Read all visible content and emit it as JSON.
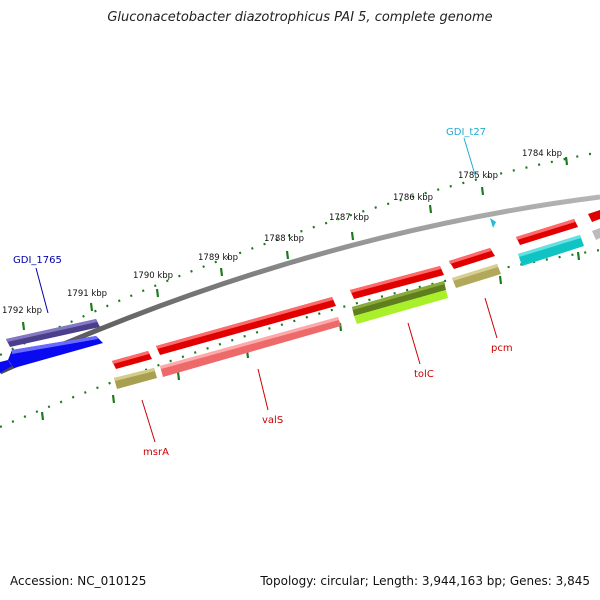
{
  "header": {
    "title": "Gluconacetobacter diazotrophicus PAI 5, complete genome"
  },
  "footer": {
    "accession": "Accession: NC_010125",
    "summary": "Topology: circular; Length: 3,944,163 bp; Genes: 3,845"
  },
  "colors": {
    "backbone": "#7f7f7f",
    "tick": "#1e7a1e",
    "label_red": "#cc0000",
    "label_navy": "#0000aa",
    "label_cyan": "#22aacc"
  },
  "scale": {
    "ticks": [
      {
        "label": "1784 kbp"
      },
      {
        "label": "1785 kbp"
      },
      {
        "label": "1786 kbp"
      },
      {
        "label": "1787 kbp"
      },
      {
        "label": "1788 kbp"
      },
      {
        "label": "1789 kbp"
      },
      {
        "label": "1790 kbp"
      },
      {
        "label": "1791 kbp"
      },
      {
        "label": "1792 kbp"
      }
    ]
  },
  "genes": {
    "labels": [
      {
        "name": "GDI_1765",
        "color": "navy"
      },
      {
        "name": "GDI_t27",
        "color": "cyan"
      },
      {
        "name": "msrA",
        "color": "red"
      },
      {
        "name": "valS",
        "color": "red"
      },
      {
        "name": "tolC",
        "color": "red"
      },
      {
        "name": "pcm",
        "color": "red"
      }
    ]
  }
}
